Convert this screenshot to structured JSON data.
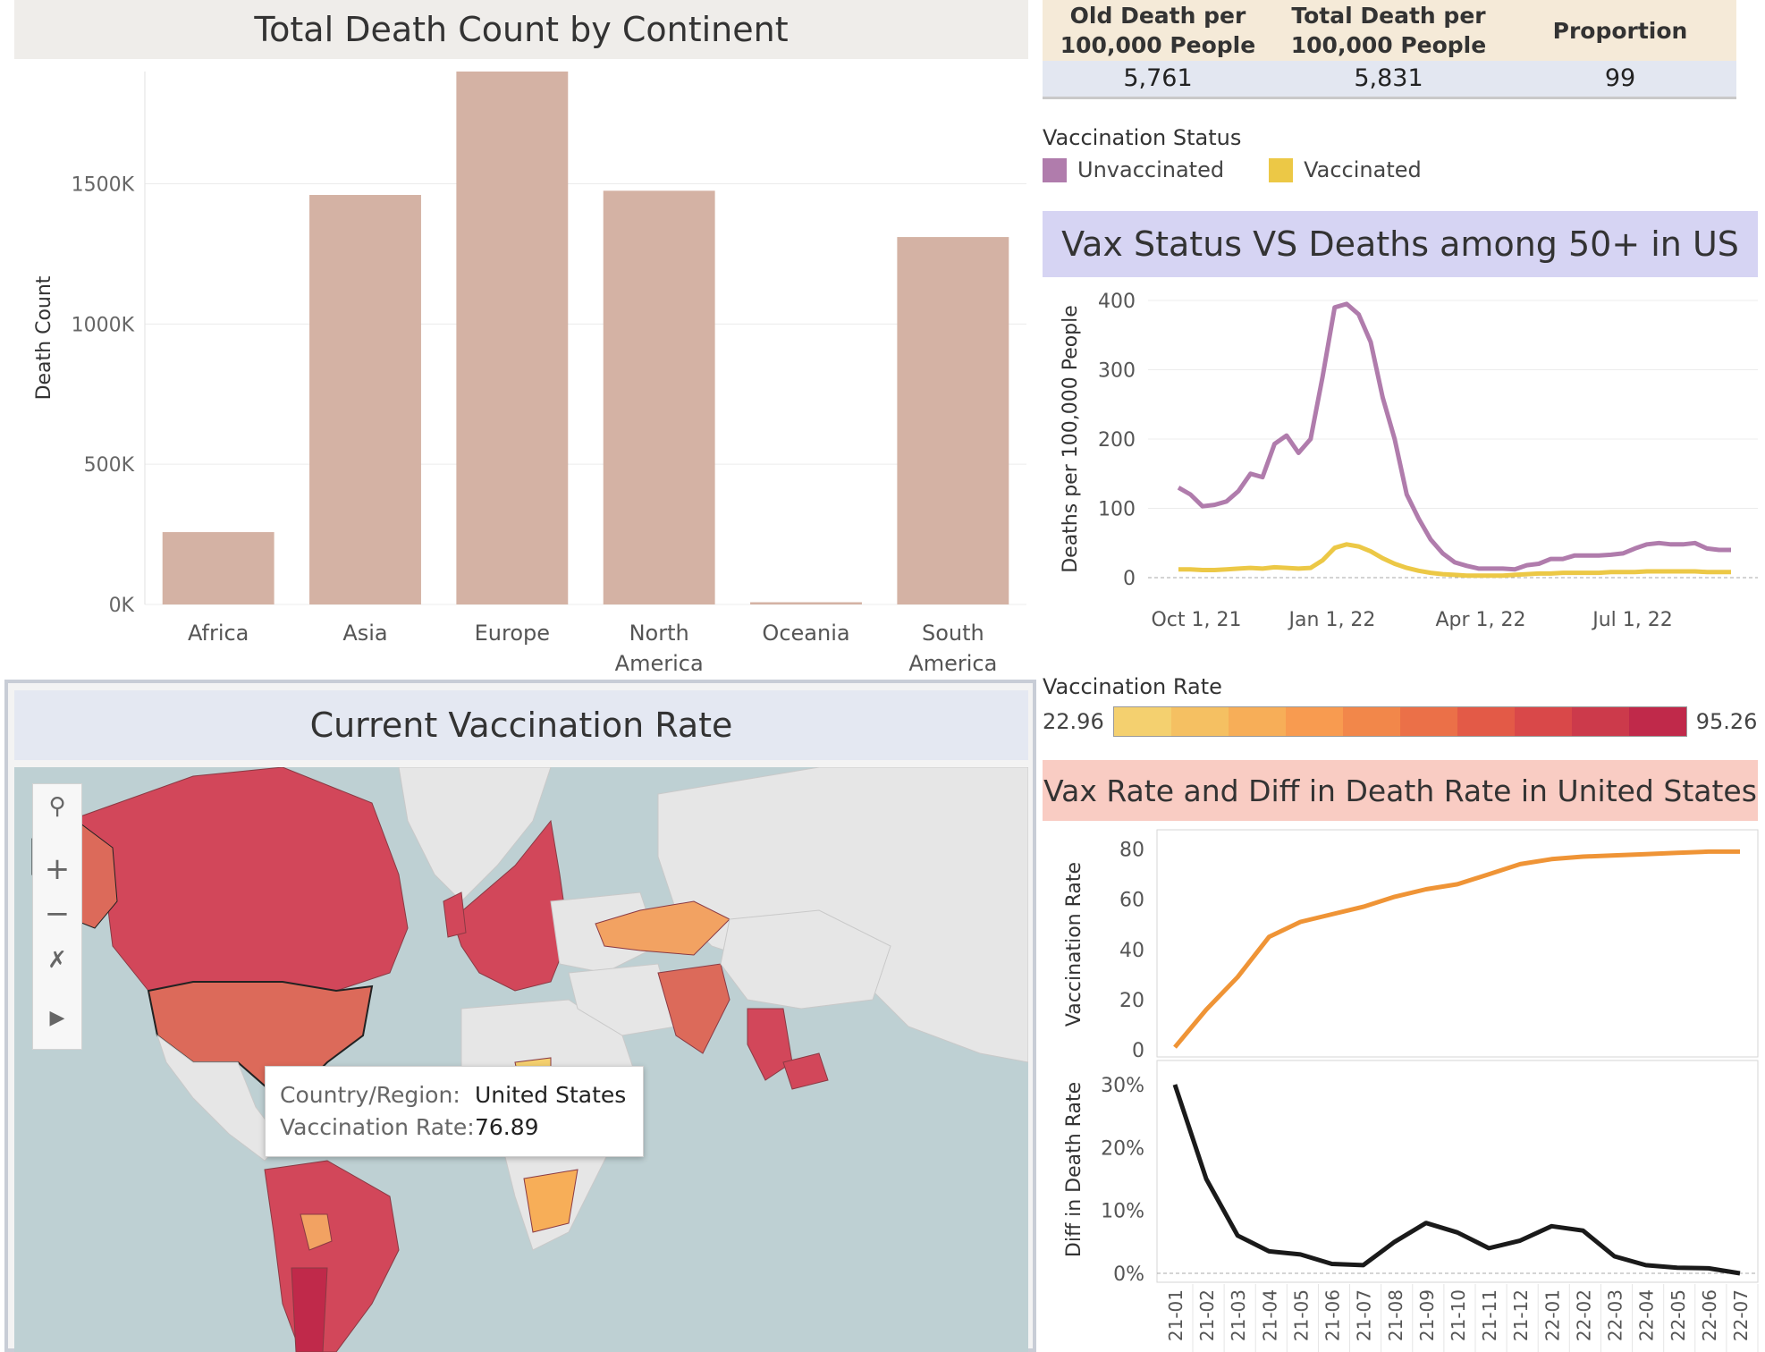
{
  "continent_chart": {
    "title": "Total Death Count by Continent",
    "ylabel": "Death Count",
    "chart_data": {
      "type": "bar",
      "categories": [
        "Africa",
        "Asia",
        "Europe",
        "North America",
        "Oceania",
        "South America"
      ],
      "category_lines": [
        [
          "Africa"
        ],
        [
          "Asia"
        ],
        [
          "Europe"
        ],
        [
          "North",
          "America"
        ],
        [
          "Oceania"
        ],
        [
          "South",
          "America"
        ]
      ],
      "values": [
        258000,
        1460000,
        1900000,
        1475000,
        8000,
        1310000
      ],
      "ylim": [
        0,
        1900000
      ],
      "yticks": [
        0,
        500000,
        1000000,
        1500000
      ],
      "ytick_labels": [
        "0K",
        "500K",
        "1000K",
        "1500K"
      ],
      "bar_color": "#d4b2a4",
      "grid": true
    }
  },
  "kpi_table": {
    "headers": [
      [
        "Old Death per",
        "100,000 People"
      ],
      [
        "Total Death per",
        "100,000 People"
      ],
      [
        "Proportion"
      ]
    ],
    "values": [
      "5,761",
      "5,831",
      "99"
    ]
  },
  "vax_legend": {
    "title": "Vaccination Status",
    "items": [
      {
        "label": "Unvaccinated",
        "color": "#b07cac"
      },
      {
        "label": "Vaccinated",
        "color": "#ecc846"
      }
    ]
  },
  "us_deaths_chart": {
    "title": "Vax Status VS Deaths among 50+ in US",
    "ylabel": "Deaths per 100,000 People",
    "chart_data": {
      "type": "line",
      "x_tick_labels": [
        "Oct 1, 21",
        "Jan 1, 22",
        "Apr 1, 22",
        "Jul 1, 22"
      ],
      "y_tick_labels": [
        "0",
        "100",
        "200",
        "300",
        "400"
      ],
      "ylim": [
        0,
        400
      ],
      "grid": true,
      "series": [
        {
          "name": "Unvaccinated",
          "color": "#b07cac",
          "values": [
            130,
            120,
            103,
            105,
            110,
            125,
            150,
            145,
            193,
            205,
            180,
            200,
            290,
            390,
            395,
            380,
            340,
            260,
            200,
            120,
            85,
            55,
            35,
            22,
            17,
            13,
            13,
            13,
            12,
            18,
            20,
            27,
            27,
            32,
            32,
            32,
            33,
            35,
            42,
            48,
            50,
            48,
            48,
            50,
            42,
            40,
            40
          ]
        },
        {
          "name": "Vaccinated",
          "color": "#ecc846",
          "values": [
            12,
            12,
            11,
            11,
            12,
            13,
            14,
            13,
            15,
            14,
            13,
            14,
            25,
            43,
            48,
            45,
            38,
            28,
            20,
            14,
            10,
            7,
            5,
            4,
            3,
            3,
            3,
            3,
            4,
            5,
            6,
            6,
            7,
            7,
            7,
            7,
            8,
            8,
            8,
            9,
            9,
            9,
            9,
            9,
            8,
            8,
            8
          ]
        }
      ]
    }
  },
  "map": {
    "title": "Current Vaccination Rate",
    "tooltip": {
      "country_label": "Country/Region:",
      "country_value": "United States",
      "rate_label": "Vaccination Rate:",
      "rate_value": "76.89"
    },
    "controls": [
      "search-icon",
      "zoom-in-icon",
      "zoom-out-icon",
      "pin-icon",
      "play-icon"
    ],
    "colors": {
      "ocean": "#bed0d3",
      "land_nodata": "#e6e6e6",
      "high": "#d2475a",
      "mid": "#dc6a5a",
      "low": "#f2a262"
    }
  },
  "rate_legend": {
    "title": "Vaccination Rate",
    "min": "22.96",
    "max": "95.26",
    "colors": [
      "#f4d06f",
      "#f5c062",
      "#f7ae58",
      "#f89b50",
      "#f2874a",
      "#eb7048",
      "#e35a47",
      "#d94849",
      "#cc3a4b",
      "#c0294a"
    ]
  },
  "us_rate_chart": {
    "title": "Vax Rate and Diff in Death Rate in United States",
    "top": {
      "ylabel": "Vaccination Rate",
      "y_tick_labels": [
        "0",
        "20",
        "40",
        "60",
        "80"
      ],
      "ylim": [
        0,
        82
      ],
      "color": "#ef9436"
    },
    "bottom": {
      "ylabel": "Diff in Death Rate",
      "y_tick_labels": [
        "0%",
        "10%",
        "20%",
        "30%"
      ],
      "ylim": [
        0,
        31
      ],
      "color": "#1a1a1a"
    },
    "chart_data": {
      "type": "line",
      "x": [
        "21-01",
        "21-02",
        "21-03",
        "21-04",
        "21-05",
        "21-06",
        "21-07",
        "21-08",
        "21-09",
        "21-10",
        "21-11",
        "21-12",
        "22-01",
        "22-02",
        "22-03",
        "22-04",
        "22-05",
        "22-06",
        "22-07"
      ],
      "series": [
        {
          "name": "Vaccination Rate",
          "values": [
            1,
            16,
            29,
            45,
            51,
            54,
            57,
            61,
            64,
            66,
            70,
            74,
            76,
            77,
            77.5,
            78,
            78.5,
            79,
            79
          ]
        },
        {
          "name": "Diff in Death Rate",
          "values": [
            30,
            15,
            6,
            3.5,
            3,
            1.5,
            1.3,
            5,
            8,
            6.5,
            4,
            5.2,
            7.5,
            6.8,
            2.7,
            1.3,
            0.9,
            0.8,
            0
          ]
        }
      ]
    }
  }
}
